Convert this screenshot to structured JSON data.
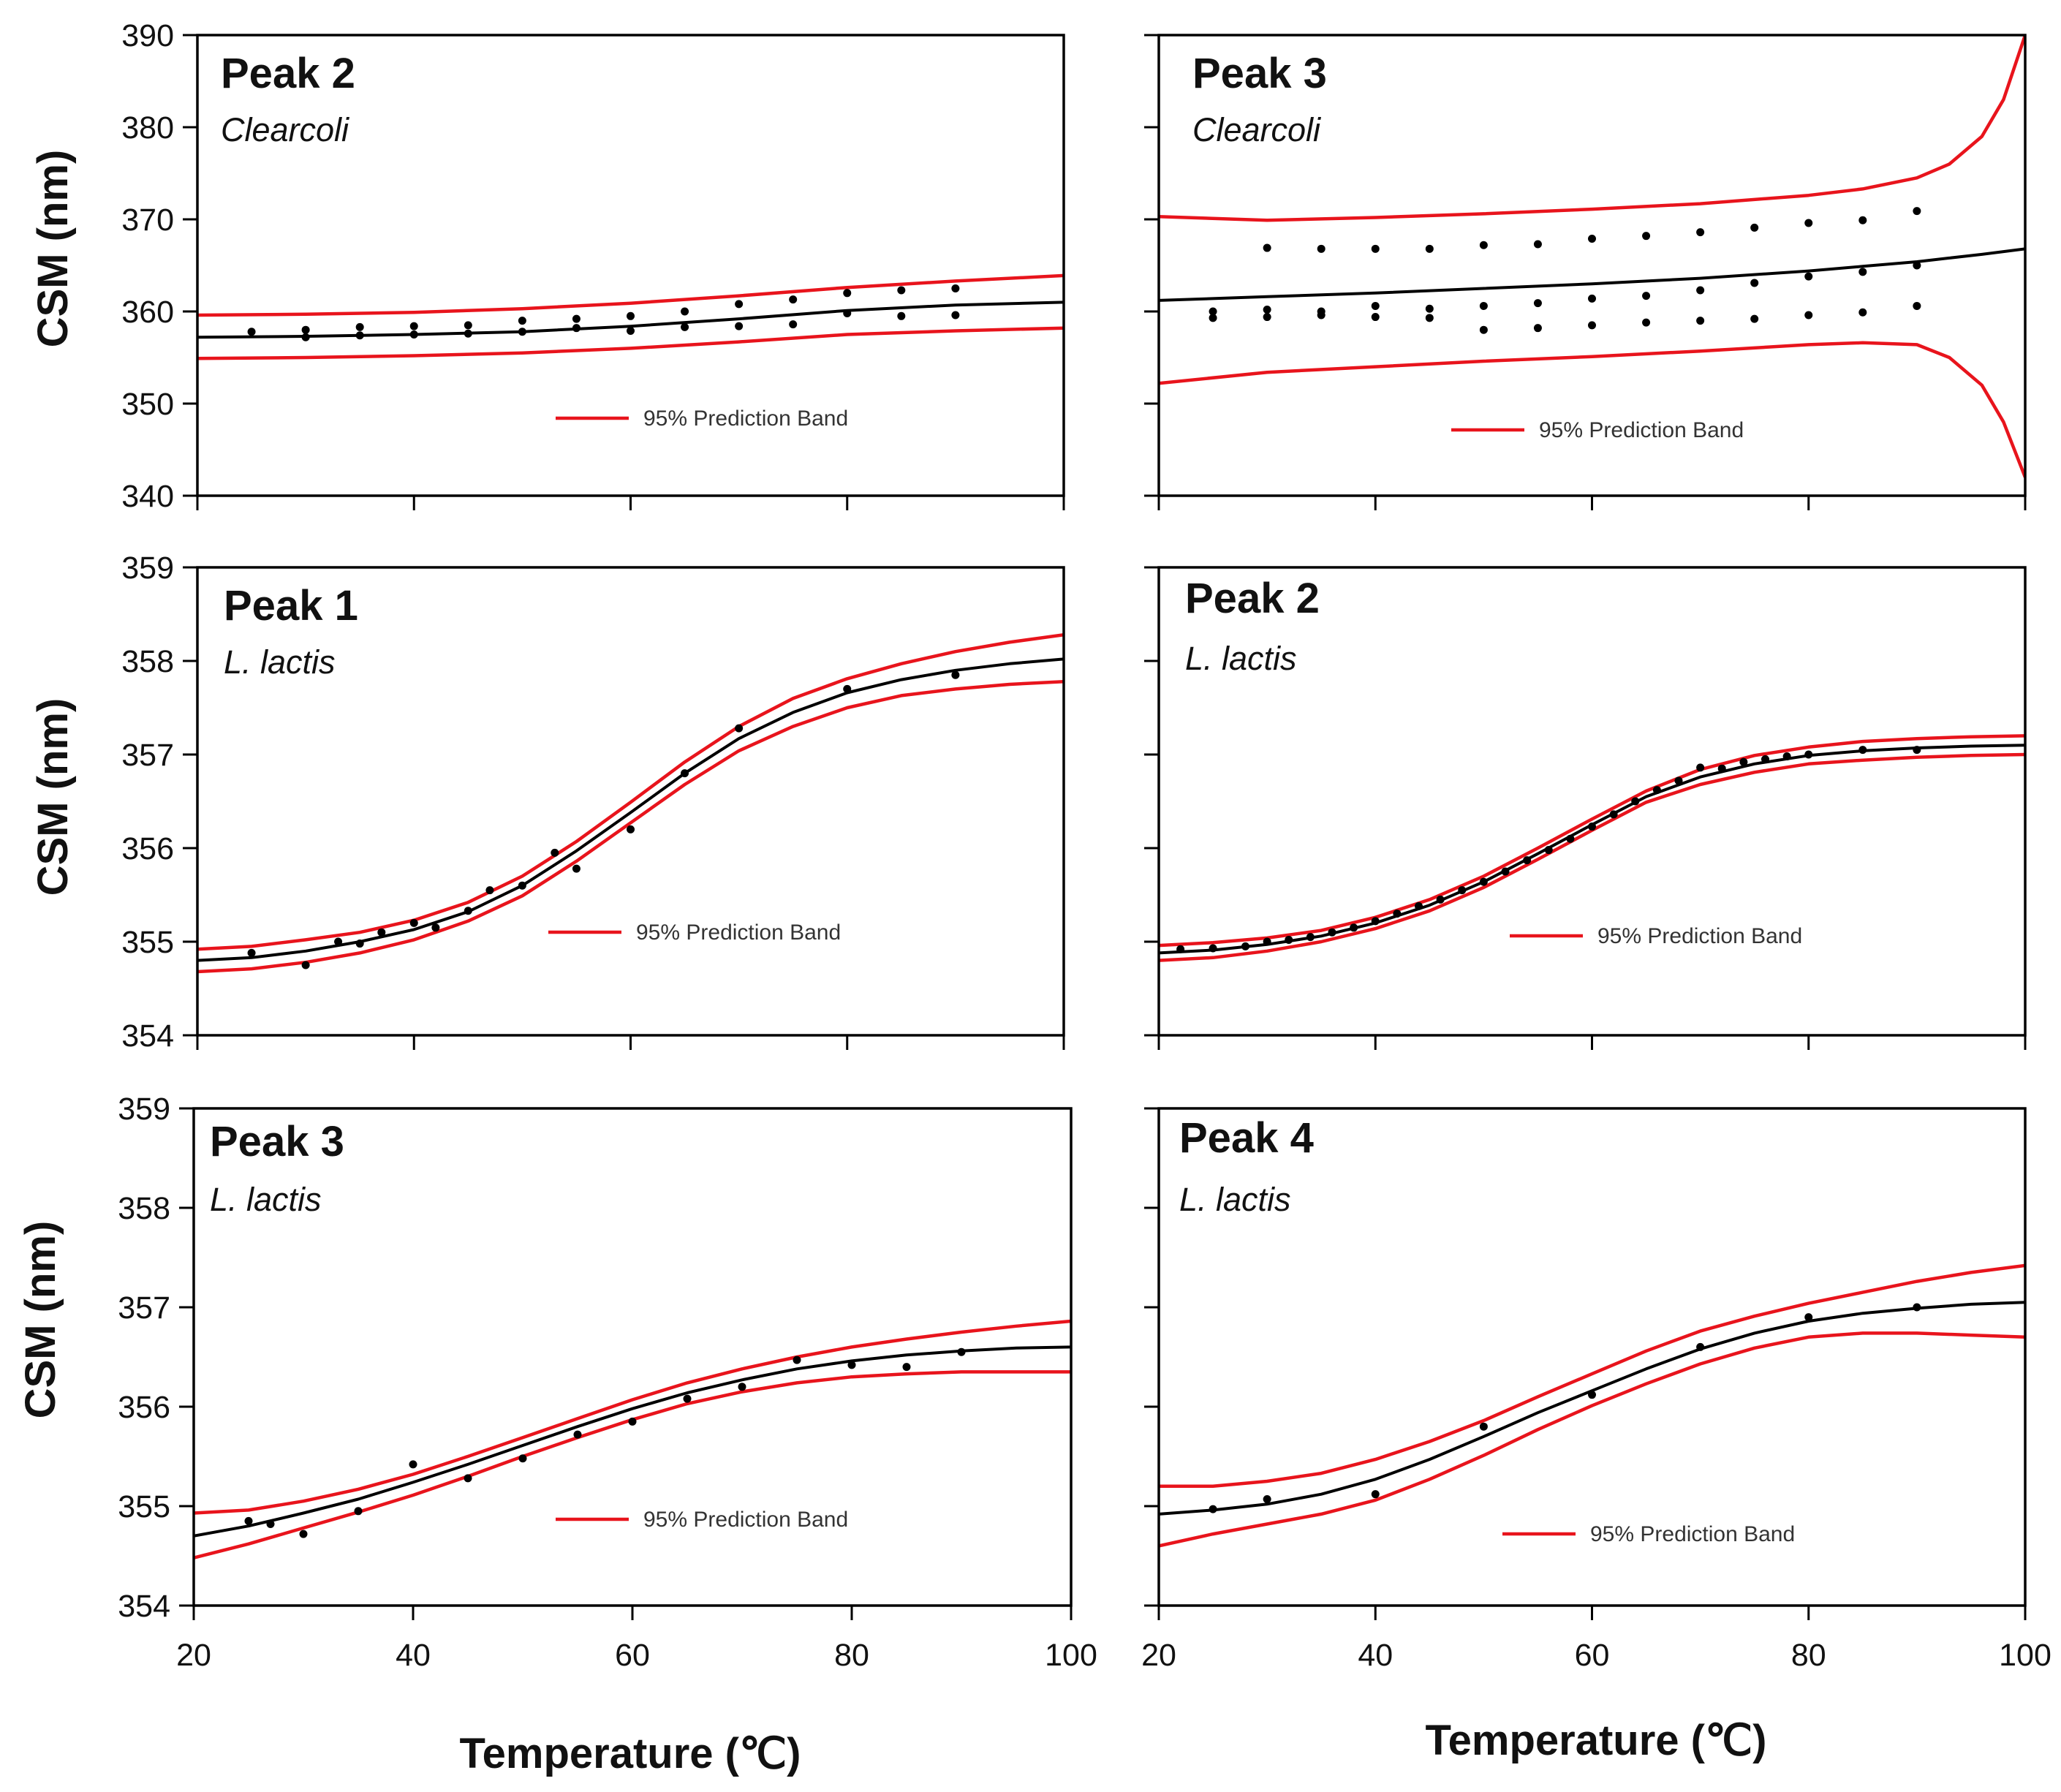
{
  "figure": {
    "x_axis_title": "Temperature (℃)",
    "y_axis_title": "CSM (nm)",
    "colors": {
      "fit": "#000000",
      "band": "#e8141c",
      "points": "#000000",
      "frame": "#000000"
    }
  },
  "chart_data": [
    {
      "type": "line",
      "id": "clearcoli-peak2",
      "title": "Peak 2",
      "subtitle": "Clearcoli",
      "xlabel": "",
      "ylabel": "CSM (nm)",
      "xlim": [
        20,
        100
      ],
      "ylim": [
        340,
        390
      ],
      "xticks": [
        20,
        40,
        60,
        80,
        100
      ],
      "xtick_labels_shown": false,
      "yticks": [
        340,
        350,
        360,
        370,
        380,
        390
      ],
      "legend": {
        "label": "95% Prediction Band",
        "placement": "lower-right"
      },
      "x": [
        20,
        30,
        40,
        50,
        60,
        70,
        80,
        90,
        100
      ],
      "series": [
        {
          "name": "fit",
          "role": "fit",
          "values": [
            357.2,
            357.3,
            357.5,
            357.8,
            358.4,
            359.2,
            360.1,
            360.7,
            361.0
          ]
        },
        {
          "name": "95% Prediction Band",
          "role": "band-upper",
          "values": [
            359.6,
            359.7,
            359.9,
            360.3,
            360.9,
            361.7,
            362.6,
            363.3,
            363.9
          ]
        },
        {
          "name": "",
          "role": "band-lower",
          "values": [
            354.9,
            355.0,
            355.2,
            355.5,
            356.0,
            356.7,
            357.5,
            357.9,
            358.2
          ]
        }
      ],
      "points": [
        [
          25,
          357.8
        ],
        [
          30,
          357.2
        ],
        [
          30,
          358.0
        ],
        [
          35,
          357.4
        ],
        [
          35,
          358.3
        ],
        [
          40,
          357.5
        ],
        [
          40,
          358.4
        ],
        [
          45,
          357.6
        ],
        [
          45,
          358.5
        ],
        [
          50,
          357.8
        ],
        [
          50,
          359.0
        ],
        [
          55,
          358.2
        ],
        [
          55,
          359.2
        ],
        [
          60,
          357.9
        ],
        [
          60,
          359.5
        ],
        [
          65,
          358.3
        ],
        [
          65,
          360.0
        ],
        [
          70,
          358.4
        ],
        [
          70,
          360.8
        ],
        [
          75,
          358.6
        ],
        [
          75,
          361.3
        ],
        [
          80,
          359.8
        ],
        [
          80,
          362.0
        ],
        [
          85,
          359.5
        ],
        [
          85,
          362.3
        ],
        [
          90,
          359.6
        ],
        [
          90,
          362.5
        ]
      ]
    },
    {
      "type": "line",
      "id": "clearcoli-peak3",
      "title": "Peak 3",
      "subtitle": "Clearcoli",
      "xlabel": "",
      "ylabel": "",
      "xlim": [
        20,
        100
      ],
      "ylim": [
        340,
        390
      ],
      "xticks": [
        20,
        40,
        60,
        80,
        100
      ],
      "xtick_labels_shown": false,
      "yticks": [
        340,
        350,
        360,
        370,
        380,
        390
      ],
      "ytick_labels_shown": false,
      "legend": {
        "label": "95% Prediction Band",
        "placement": "lower-right"
      },
      "x": [
        20,
        30,
        40,
        50,
        60,
        70,
        80,
        85,
        90,
        93,
        96,
        98,
        100
      ],
      "series": [
        {
          "name": "fit",
          "role": "fit",
          "values": [
            361.2,
            361.6,
            362.0,
            362.5,
            363.0,
            363.6,
            364.4,
            364.9,
            365.4,
            365.8,
            366.2,
            366.5,
            366.8
          ]
        },
        {
          "name": "95% Prediction Band",
          "role": "band-upper",
          "values": [
            370.3,
            369.9,
            370.2,
            370.6,
            371.1,
            371.7,
            372.6,
            373.3,
            374.5,
            376.0,
            379.0,
            383.0,
            390.0
          ]
        },
        {
          "name": "",
          "role": "band-lower",
          "values": [
            352.2,
            353.4,
            354.0,
            354.6,
            355.1,
            355.7,
            356.4,
            356.6,
            356.4,
            355.0,
            352.0,
            348.0,
            342.0
          ]
        }
      ],
      "points": [
        [
          25,
          359.3
        ],
        [
          25,
          360.0
        ],
        [
          30,
          359.4
        ],
        [
          30,
          360.2
        ],
        [
          30,
          366.9
        ],
        [
          35,
          359.6
        ],
        [
          35,
          360.0
        ],
        [
          35,
          366.8
        ],
        [
          40,
          359.4
        ],
        [
          40,
          360.6
        ],
        [
          40,
          366.8
        ],
        [
          45,
          359.3
        ],
        [
          45,
          360.3
        ],
        [
          45,
          366.8
        ],
        [
          50,
          358.0
        ],
        [
          50,
          360.6
        ],
        [
          50,
          367.2
        ],
        [
          55,
          358.2
        ],
        [
          55,
          360.9
        ],
        [
          55,
          367.3
        ],
        [
          60,
          358.5
        ],
        [
          60,
          361.4
        ],
        [
          60,
          367.9
        ],
        [
          65,
          358.8
        ],
        [
          65,
          361.7
        ],
        [
          65,
          368.2
        ],
        [
          70,
          359.0
        ],
        [
          70,
          362.3
        ],
        [
          70,
          368.6
        ],
        [
          75,
          359.2
        ],
        [
          75,
          363.1
        ],
        [
          75,
          369.1
        ],
        [
          80,
          359.6
        ],
        [
          80,
          363.8
        ],
        [
          80,
          369.6
        ],
        [
          85,
          359.9
        ],
        [
          85,
          364.3
        ],
        [
          85,
          369.9
        ],
        [
          90,
          360.6
        ],
        [
          90,
          365.0
        ],
        [
          90,
          370.9
        ]
      ]
    },
    {
      "type": "line",
      "id": "llactis-peak1",
      "title": "Peak 1",
      "subtitle": "L. lactis",
      "xlabel": "",
      "ylabel": "CSM (nm)",
      "xlim": [
        20,
        100
      ],
      "ylim": [
        354,
        359
      ],
      "xticks": [
        20,
        40,
        60,
        80,
        100
      ],
      "xtick_labels_shown": false,
      "yticks": [
        354,
        355,
        356,
        357,
        358,
        359
      ],
      "legend": {
        "label": "95% Prediction Band",
        "placement": "lower-right"
      },
      "x": [
        20,
        25,
        30,
        35,
        40,
        45,
        50,
        55,
        60,
        65,
        70,
        75,
        80,
        85,
        90,
        95,
        100
      ],
      "series": [
        {
          "name": "fit",
          "role": "fit",
          "values": [
            354.8,
            354.83,
            354.9,
            355.0,
            355.13,
            355.32,
            355.6,
            355.97,
            356.38,
            356.8,
            357.17,
            357.45,
            357.66,
            357.8,
            357.9,
            357.97,
            358.02
          ]
        },
        {
          "name": "95% Prediction Band",
          "role": "band-upper",
          "values": [
            354.92,
            354.95,
            355.02,
            355.1,
            355.23,
            355.42,
            355.7,
            356.07,
            356.49,
            356.92,
            357.3,
            357.6,
            357.81,
            357.97,
            358.1,
            358.2,
            358.28
          ]
        },
        {
          "name": "",
          "role": "band-lower",
          "values": [
            354.68,
            354.71,
            354.78,
            354.88,
            355.02,
            355.22,
            355.49,
            355.86,
            356.27,
            356.68,
            357.04,
            357.3,
            357.5,
            357.63,
            357.7,
            357.75,
            357.78
          ]
        }
      ],
      "points": [
        [
          25,
          354.88
        ],
        [
          30,
          354.75
        ],
        [
          33,
          355.0
        ],
        [
          35,
          354.98
        ],
        [
          37,
          355.1
        ],
        [
          40,
          355.2
        ],
        [
          42,
          355.15
        ],
        [
          45,
          355.33
        ],
        [
          47,
          355.55
        ],
        [
          50,
          355.6
        ],
        [
          53,
          355.95
        ],
        [
          55,
          355.78
        ],
        [
          60,
          356.2
        ],
        [
          65,
          356.8
        ],
        [
          70,
          357.28
        ],
        [
          80,
          357.7
        ],
        [
          90,
          357.85
        ]
      ]
    },
    {
      "type": "line",
      "id": "llactis-peak2",
      "title": "Peak 2",
      "subtitle": "L. lactis",
      "xlabel": "",
      "ylabel": "",
      "xlim": [
        20,
        100
      ],
      "ylim": [
        354,
        359
      ],
      "xticks": [
        20,
        40,
        60,
        80,
        100
      ],
      "xtick_labels_shown": false,
      "yticks": [
        354,
        355,
        356,
        357,
        358,
        359
      ],
      "ytick_labels_shown": false,
      "legend": {
        "label": "95% Prediction Band",
        "placement": "lower-right"
      },
      "x": [
        20,
        25,
        30,
        35,
        40,
        45,
        50,
        55,
        60,
        65,
        70,
        75,
        80,
        85,
        90,
        95,
        100
      ],
      "series": [
        {
          "name": "fit",
          "role": "fit",
          "values": [
            354.88,
            354.91,
            354.97,
            355.06,
            355.2,
            355.39,
            355.64,
            355.94,
            356.25,
            356.55,
            356.76,
            356.9,
            356.99,
            357.04,
            357.07,
            357.09,
            357.1
          ]
        },
        {
          "name": "95% Prediction Band",
          "role": "band-upper",
          "values": [
            354.96,
            354.99,
            355.04,
            355.12,
            355.26,
            355.45,
            355.7,
            356.0,
            356.31,
            356.61,
            356.84,
            356.99,
            357.08,
            357.14,
            357.17,
            357.19,
            357.2
          ]
        },
        {
          "name": "",
          "role": "band-lower",
          "values": [
            354.8,
            354.83,
            354.9,
            355.0,
            355.14,
            355.33,
            355.58,
            355.88,
            356.19,
            356.49,
            356.68,
            356.81,
            356.9,
            356.94,
            356.97,
            356.99,
            357.0
          ]
        }
      ],
      "points": [
        [
          22,
          354.92
        ],
        [
          25,
          354.93
        ],
        [
          28,
          354.95
        ],
        [
          30,
          355.0
        ],
        [
          32,
          355.02
        ],
        [
          34,
          355.05
        ],
        [
          36,
          355.1
        ],
        [
          38,
          355.15
        ],
        [
          40,
          355.22
        ],
        [
          42,
          355.3
        ],
        [
          44,
          355.38
        ],
        [
          46,
          355.45
        ],
        [
          48,
          355.55
        ],
        [
          50,
          355.64
        ],
        [
          52,
          355.75
        ],
        [
          54,
          355.87
        ],
        [
          56,
          355.98
        ],
        [
          58,
          356.1
        ],
        [
          60,
          356.23
        ],
        [
          62,
          356.36
        ],
        [
          64,
          356.5
        ],
        [
          66,
          356.62
        ],
        [
          68,
          356.72
        ],
        [
          70,
          356.86
        ],
        [
          72,
          356.85
        ],
        [
          74,
          356.92
        ],
        [
          76,
          356.95
        ],
        [
          78,
          356.98
        ],
        [
          80,
          357.0
        ],
        [
          85,
          357.05
        ],
        [
          90,
          357.05
        ]
      ]
    },
    {
      "type": "line",
      "id": "llactis-peak3",
      "title": "Peak 3",
      "subtitle": "L. lactis",
      "xlabel": "Temperature (℃)",
      "ylabel": "CSM (nm)",
      "xlim": [
        20,
        100
      ],
      "ylim": [
        354,
        359
      ],
      "xticks": [
        20,
        40,
        60,
        80,
        100
      ],
      "yticks": [
        354,
        355,
        356,
        357,
        358,
        359
      ],
      "legend": {
        "label": "95% Prediction Band",
        "placement": "lower-right"
      },
      "x": [
        20,
        25,
        30,
        35,
        40,
        45,
        50,
        55,
        60,
        65,
        70,
        75,
        80,
        85,
        90,
        95,
        100
      ],
      "series": [
        {
          "name": "fit",
          "role": "fit",
          "values": [
            354.7,
            354.8,
            354.93,
            355.07,
            355.24,
            355.42,
            355.61,
            355.8,
            355.98,
            356.14,
            356.27,
            356.38,
            356.46,
            356.52,
            356.56,
            356.59,
            356.6
          ]
        },
        {
          "name": "95% Prediction Band",
          "role": "band-upper",
          "values": [
            354.93,
            354.96,
            355.05,
            355.17,
            355.32,
            355.5,
            355.69,
            355.88,
            356.07,
            356.24,
            356.38,
            356.5,
            356.6,
            356.68,
            356.75,
            356.81,
            356.86
          ]
        },
        {
          "name": "",
          "role": "band-lower",
          "values": [
            354.48,
            354.62,
            354.78,
            354.94,
            355.11,
            355.3,
            355.5,
            355.69,
            355.87,
            356.03,
            356.15,
            356.24,
            356.3,
            356.33,
            356.35,
            356.35,
            356.35
          ]
        }
      ],
      "points": [
        [
          25,
          354.85
        ],
        [
          27,
          354.82
        ],
        [
          30,
          354.72
        ],
        [
          35,
          354.95
        ],
        [
          40,
          355.42
        ],
        [
          45,
          355.28
        ],
        [
          50,
          355.48
        ],
        [
          55,
          355.72
        ],
        [
          60,
          355.85
        ],
        [
          65,
          356.08
        ],
        [
          70,
          356.2
        ],
        [
          75,
          356.47
        ],
        [
          80,
          356.42
        ],
        [
          85,
          356.4
        ],
        [
          90,
          356.55
        ]
      ]
    },
    {
      "type": "line",
      "id": "llactis-peak4",
      "title": "Peak 4",
      "subtitle": "L. lactis",
      "xlabel": "Temperature (℃)",
      "ylabel": "",
      "xlim": [
        20,
        100
      ],
      "ylim": [
        354,
        359
      ],
      "xticks": [
        20,
        40,
        60,
        80,
        100
      ],
      "yticks": [
        354,
        355,
        356,
        357,
        358,
        359
      ],
      "ytick_labels_shown": false,
      "legend": {
        "label": "95% Prediction Band",
        "placement": "lower-right"
      },
      "x": [
        20,
        25,
        30,
        35,
        40,
        45,
        50,
        55,
        60,
        65,
        70,
        75,
        80,
        85,
        90,
        95,
        100
      ],
      "series": [
        {
          "name": "fit",
          "role": "fit",
          "values": [
            354.92,
            354.96,
            355.02,
            355.12,
            355.27,
            355.47,
            355.7,
            355.94,
            356.16,
            356.38,
            356.58,
            356.74,
            356.86,
            356.94,
            356.99,
            357.03,
            357.05
          ]
        },
        {
          "name": "95% Prediction Band",
          "role": "band-upper",
          "values": [
            355.2,
            355.2,
            355.25,
            355.33,
            355.47,
            355.65,
            355.86,
            356.1,
            356.33,
            356.56,
            356.76,
            356.91,
            357.04,
            357.15,
            357.26,
            357.35,
            357.42
          ]
        },
        {
          "name": "",
          "role": "band-lower",
          "values": [
            354.6,
            354.72,
            354.82,
            354.92,
            355.06,
            355.27,
            355.51,
            355.77,
            356.01,
            356.23,
            356.43,
            356.59,
            356.7,
            356.74,
            356.74,
            356.72,
            356.7
          ]
        }
      ],
      "points": [
        [
          25,
          354.97
        ],
        [
          30,
          355.07
        ],
        [
          40,
          355.12
        ],
        [
          50,
          355.8
        ],
        [
          60,
          356.12
        ],
        [
          70,
          356.6
        ],
        [
          80,
          356.9
        ],
        [
          90,
          357.0
        ]
      ]
    }
  ]
}
